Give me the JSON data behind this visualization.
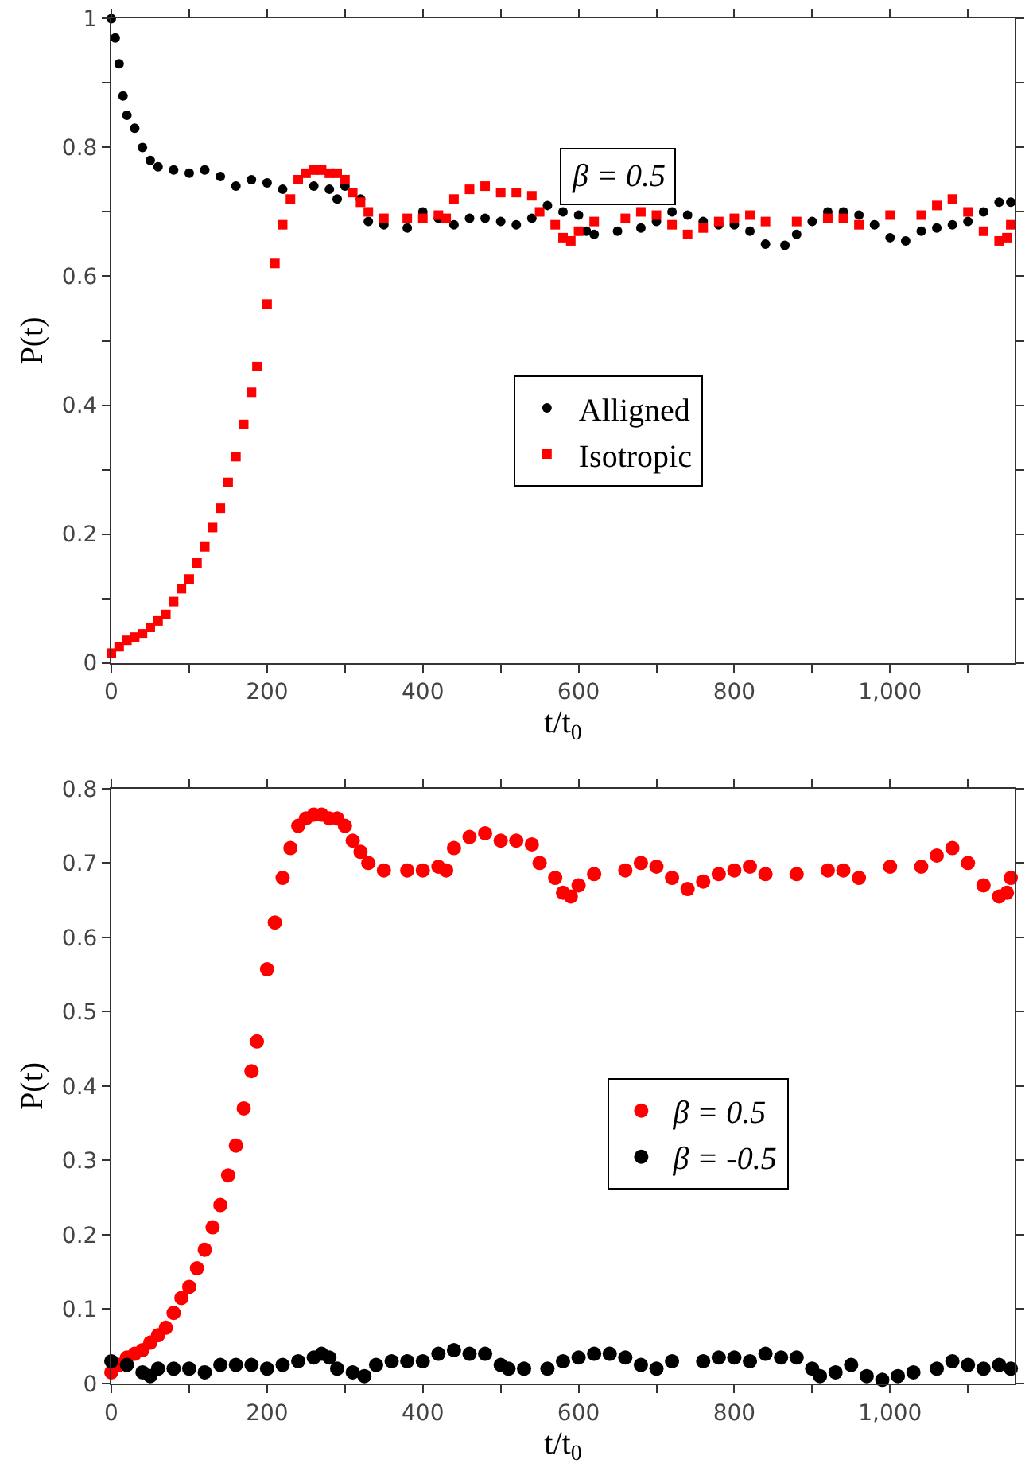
{
  "chart_data": [
    {
      "type": "scatter",
      "xlabel": "t/t$_{0}$",
      "ylabel": "P(t)",
      "xlim": [
        0,
        1160
      ],
      "ylim": [
        0,
        1
      ],
      "xticks": [
        0,
        {
          "value": 100,
          "label": null
        },
        200,
        {
          "value": 300,
          "label": null
        },
        400,
        {
          "value": 500,
          "label": null
        },
        600,
        {
          "value": 700,
          "label": null
        },
        800,
        {
          "value": 900,
          "label": null
        },
        {
          "value": 1000,
          "label": "1,000"
        },
        {
          "value": 1100,
          "label": null
        }
      ],
      "yticks": [
        0,
        {
          "value": 0.1,
          "label": null
        },
        0.2,
        {
          "value": 0.3,
          "label": null
        },
        0.4,
        {
          "value": 0.5,
          "label": null
        },
        0.6,
        {
          "value": 0.7,
          "label": null
        },
        0.8,
        {
          "value": 0.9,
          "label": null
        },
        1
      ],
      "legend": "center",
      "annotations": [
        "β = 0.5"
      ],
      "series": [
        {
          "name": "Alligned",
          "color": "#000000",
          "marker": "circle",
          "x": [
            0,
            5,
            10,
            15,
            20,
            30,
            40,
            50,
            60,
            80,
            100,
            120,
            140,
            160,
            180,
            200,
            220,
            260,
            280,
            290,
            300,
            320,
            330,
            350,
            380,
            400,
            420,
            440,
            460,
            480,
            500,
            520,
            540,
            560,
            580,
            600,
            610,
            620,
            650,
            680,
            700,
            720,
            740,
            760,
            780,
            800,
            820,
            840,
            865,
            880,
            900,
            920,
            940,
            960,
            980,
            1000,
            1020,
            1040,
            1060,
            1080,
            1100,
            1120,
            1140,
            1155
          ],
          "values": [
            1.0,
            0.97,
            0.93,
            0.88,
            0.85,
            0.83,
            0.8,
            0.78,
            0.77,
            0.765,
            0.76,
            0.765,
            0.755,
            0.74,
            0.75,
            0.745,
            0.735,
            0.74,
            0.735,
            0.72,
            0.74,
            0.72,
            0.685,
            0.68,
            0.675,
            0.7,
            0.69,
            0.68,
            0.69,
            0.69,
            0.685,
            0.68,
            0.69,
            0.71,
            0.7,
            0.695,
            0.67,
            0.665,
            0.67,
            0.675,
            0.685,
            0.7,
            0.695,
            0.685,
            0.68,
            0.68,
            0.67,
            0.65,
            0.648,
            0.665,
            0.685,
            0.7,
            0.7,
            0.695,
            0.68,
            0.66,
            0.655,
            0.67,
            0.675,
            0.68,
            0.685,
            0.7,
            0.715,
            0.715
          ]
        },
        {
          "name": "Isotropic",
          "color": "#ff0000",
          "marker": "square",
          "x": [
            0,
            10,
            20,
            30,
            40,
            50,
            60,
            70,
            80,
            90,
            100,
            110,
            120,
            130,
            140,
            150,
            160,
            170,
            180,
            187,
            200,
            210,
            220,
            230,
            240,
            250,
            260,
            270,
            280,
            290,
            300,
            310,
            320,
            330,
            350,
            380,
            400,
            420,
            430,
            440,
            460,
            480,
            500,
            520,
            540,
            550,
            570,
            580,
            590,
            600,
            620,
            660,
            680,
            700,
            720,
            740,
            760,
            780,
            800,
            820,
            840,
            880,
            920,
            940,
            960,
            1000,
            1040,
            1060,
            1080,
            1100,
            1120,
            1140,
            1150,
            1155
          ],
          "values": [
            0.015,
            0.025,
            0.035,
            0.04,
            0.045,
            0.055,
            0.065,
            0.075,
            0.095,
            0.115,
            0.13,
            0.155,
            0.18,
            0.21,
            0.24,
            0.28,
            0.32,
            0.37,
            0.42,
            0.46,
            0.557,
            0.62,
            0.68,
            0.72,
            0.75,
            0.76,
            0.765,
            0.765,
            0.76,
            0.76,
            0.75,
            0.73,
            0.715,
            0.7,
            0.69,
            0.69,
            0.69,
            0.695,
            0.69,
            0.72,
            0.735,
            0.74,
            0.73,
            0.73,
            0.725,
            0.7,
            0.68,
            0.66,
            0.655,
            0.67,
            0.685,
            0.69,
            0.7,
            0.695,
            0.68,
            0.665,
            0.675,
            0.685,
            0.69,
            0.695,
            0.685,
            0.685,
            0.69,
            0.69,
            0.68,
            0.695,
            0.695,
            0.71,
            0.72,
            0.7,
            0.67,
            0.655,
            0.66,
            0.68
          ]
        }
      ]
    },
    {
      "type": "scatter",
      "xlabel": "t/t$_{0}$",
      "ylabel": "P(t)",
      "xlim": [
        0,
        1160
      ],
      "ylim": [
        0,
        0.8
      ],
      "xticks": [
        0,
        {
          "value": 100,
          "label": null
        },
        200,
        {
          "value": 300,
          "label": null
        },
        400,
        {
          "value": 500,
          "label": null
        },
        600,
        {
          "value": 700,
          "label": null
        },
        800,
        {
          "value": 900,
          "label": null
        },
        {
          "value": 1000,
          "label": "1,000"
        },
        {
          "value": 1100,
          "label": null
        }
      ],
      "yticks": [
        0,
        0.1,
        0.2,
        0.3,
        0.4,
        0.5,
        0.6,
        0.7,
        0.8
      ],
      "legend": "center",
      "series": [
        {
          "name": "β = 0.5",
          "color": "#ff0000",
          "marker": "circle",
          "x": [
            0,
            10,
            20,
            30,
            40,
            50,
            60,
            70,
            80,
            90,
            100,
            110,
            120,
            130,
            140,
            150,
            160,
            170,
            180,
            187,
            200,
            210,
            220,
            230,
            240,
            250,
            260,
            270,
            280,
            290,
            300,
            310,
            320,
            330,
            350,
            380,
            400,
            420,
            430,
            440,
            460,
            480,
            500,
            520,
            540,
            550,
            570,
            580,
            590,
            600,
            620,
            660,
            680,
            700,
            720,
            740,
            760,
            780,
            800,
            820,
            840,
            880,
            920,
            940,
            960,
            1000,
            1040,
            1060,
            1080,
            1100,
            1120,
            1140,
            1150,
            1155
          ],
          "values": [
            0.015,
            0.025,
            0.035,
            0.04,
            0.045,
            0.055,
            0.065,
            0.075,
            0.095,
            0.115,
            0.13,
            0.155,
            0.18,
            0.21,
            0.24,
            0.28,
            0.32,
            0.37,
            0.42,
            0.46,
            0.557,
            0.62,
            0.68,
            0.72,
            0.75,
            0.76,
            0.765,
            0.765,
            0.76,
            0.76,
            0.75,
            0.73,
            0.715,
            0.7,
            0.69,
            0.69,
            0.69,
            0.695,
            0.69,
            0.72,
            0.735,
            0.74,
            0.73,
            0.73,
            0.725,
            0.7,
            0.68,
            0.66,
            0.655,
            0.67,
            0.685,
            0.69,
            0.7,
            0.695,
            0.68,
            0.665,
            0.675,
            0.685,
            0.69,
            0.695,
            0.685,
            0.685,
            0.69,
            0.69,
            0.68,
            0.695,
            0.695,
            0.71,
            0.72,
            0.7,
            0.67,
            0.655,
            0.66,
            0.68
          ]
        },
        {
          "name": "β = -0.5",
          "color": "#000000",
          "marker": "circle",
          "x": [
            0,
            20,
            40,
            50,
            60,
            80,
            100,
            120,
            140,
            160,
            180,
            200,
            220,
            240,
            260,
            270,
            280,
            290,
            310,
            325,
            340,
            360,
            380,
            400,
            420,
            440,
            460,
            480,
            500,
            510,
            530,
            560,
            580,
            600,
            620,
            640,
            660,
            680,
            700,
            720,
            760,
            780,
            800,
            820,
            840,
            860,
            880,
            900,
            910,
            930,
            950,
            970,
            990,
            1010,
            1030,
            1060,
            1080,
            1100,
            1120,
            1140,
            1155
          ],
          "values": [
            0.03,
            0.025,
            0.015,
            0.01,
            0.02,
            0.02,
            0.02,
            0.015,
            0.025,
            0.025,
            0.025,
            0.02,
            0.025,
            0.03,
            0.035,
            0.04,
            0.035,
            0.02,
            0.015,
            0.01,
            0.025,
            0.03,
            0.03,
            0.03,
            0.04,
            0.045,
            0.04,
            0.04,
            0.025,
            0.02,
            0.02,
            0.02,
            0.03,
            0.035,
            0.04,
            0.04,
            0.035,
            0.025,
            0.02,
            0.03,
            0.03,
            0.035,
            0.035,
            0.03,
            0.04,
            0.035,
            0.035,
            0.02,
            0.01,
            0.015,
            0.025,
            0.01,
            0.005,
            0.01,
            0.015,
            0.02,
            0.03,
            0.025,
            0.02,
            0.025,
            0.02
          ]
        }
      ]
    }
  ]
}
